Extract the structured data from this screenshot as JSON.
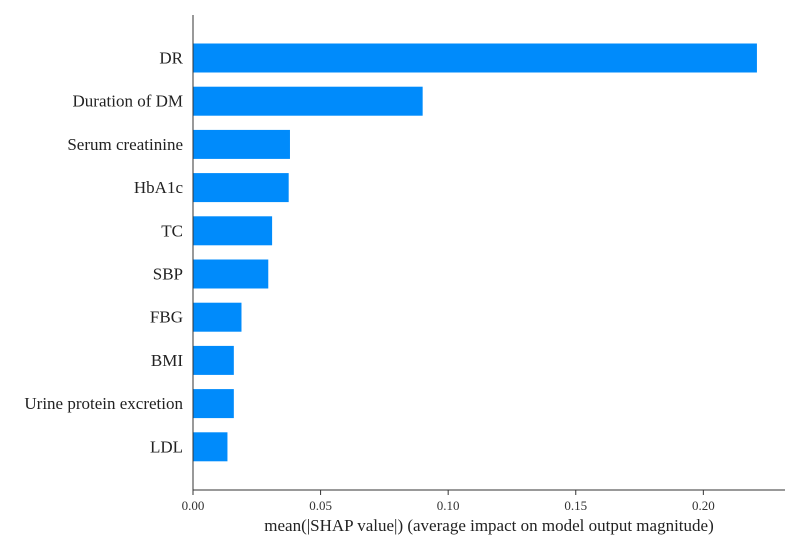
{
  "chart_data": {
    "type": "bar",
    "orientation": "horizontal",
    "title": "",
    "xlabel": "mean(|SHAP value|) (average impact on model output magnitude)",
    "ylabel": "",
    "categories": [
      "DR",
      "Duration of DM",
      "Serum creatinine",
      "HbA1c",
      "TC",
      "SBP",
      "FBG",
      "BMI",
      "Urine protein excretion",
      "LDL"
    ],
    "values": [
      0.221,
      0.09,
      0.038,
      0.0375,
      0.031,
      0.0295,
      0.019,
      0.016,
      0.016,
      0.0135
    ],
    "xlim": [
      0,
      0.232
    ],
    "xticks": [
      0.0,
      0.05,
      0.1,
      0.15,
      0.2
    ],
    "xtick_labels": [
      "0.00",
      "0.05",
      "0.10",
      "0.15",
      "0.20"
    ],
    "bar_color": "#008bfb",
    "grid": false,
    "legend": "none"
  }
}
